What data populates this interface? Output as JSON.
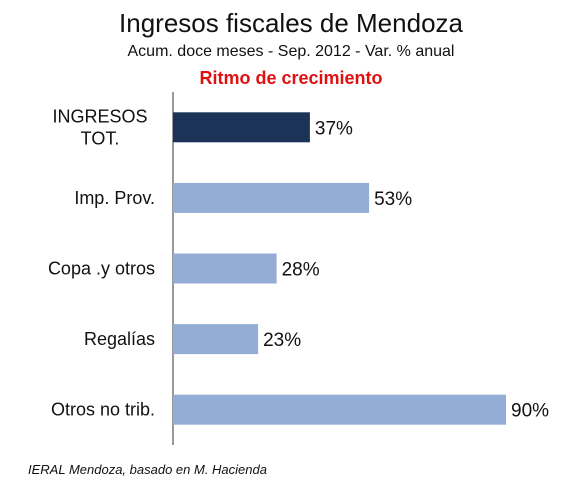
{
  "chart_data": {
    "type": "bar",
    "orientation": "horizontal",
    "title": "Ingresos fiscales de Mendoza",
    "subtitle": "Acum. doce meses -  Sep. 2012 - Var. % anual",
    "subtitle2": "Ritmo de crecimiento",
    "categories": [
      [
        "INGRESOS",
        "TOT."
      ],
      [
        "Imp. Prov."
      ],
      [
        "Copa .y otros"
      ],
      [
        "Regalías"
      ],
      [
        "Otros no trib."
      ]
    ],
    "values": [
      37,
      53,
      28,
      23,
      90
    ],
    "value_labels": [
      "37%",
      "53%",
      "28%",
      "23%",
      "90%"
    ],
    "bar_colors": [
      "#1c3358",
      "#93add6",
      "#93add6",
      "#93add6",
      "#93add6"
    ],
    "xlim": [
      0,
      90
    ],
    "grid": false,
    "legend": "none"
  },
  "footer": {
    "source": "IERAL Mendoza, basado en M. Hacienda"
  },
  "colors": {
    "title_text": "#111111",
    "subtitle2_text": "#e01010",
    "axis_line": "#333333",
    "highlight_bar": "#1c3358",
    "bar": "#93add6"
  }
}
